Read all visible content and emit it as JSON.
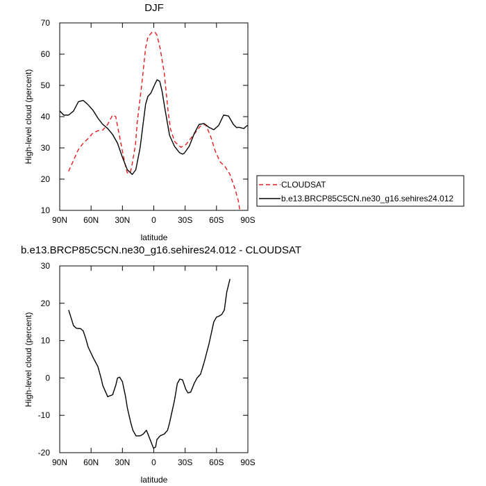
{
  "chart_data": [
    {
      "type": "line",
      "title": "DJF",
      "xlabel": "latitude",
      "ylabel": "High-level cloud (percent)",
      "xlim": [
        90,
        -90
      ],
      "ylim": [
        10,
        70
      ],
      "x_ticks": [
        90,
        60,
        30,
        0,
        -30,
        -60,
        -90
      ],
      "x_tick_labels": [
        "90N",
        "60N",
        "30N",
        "0",
        "30S",
        "60S",
        "90S"
      ],
      "y_ticks": [
        10,
        20,
        30,
        40,
        50,
        60,
        70
      ],
      "y_tick_labels": [
        "10",
        "20",
        "30",
        "40",
        "50",
        "60",
        "70"
      ],
      "legend_position": "right",
      "series": [
        {
          "name": "CLOUDSAT",
          "color": "#e41a1c",
          "dash": "dashed",
          "points": [
            [
              81.5,
              22.5
            ],
            [
              76.8,
              26
            ],
            [
              72.1,
              29.5
            ],
            [
              67.5,
              31.5
            ],
            [
              62.8,
              33
            ],
            [
              58.1,
              34.8
            ],
            [
              53.4,
              35.5
            ],
            [
              48.8,
              35.7
            ],
            [
              44.1,
              37.5
            ],
            [
              39.4,
              40.5
            ],
            [
              36.4,
              40
            ],
            [
              34.7,
              37
            ],
            [
              30,
              29
            ],
            [
              27,
              24
            ],
            [
              25.3,
              22
            ],
            [
              22.5,
              22
            ],
            [
              20.6,
              25
            ],
            [
              17.5,
              31
            ],
            [
              15.9,
              38
            ],
            [
              11.6,
              50
            ],
            [
              7.8,
              62
            ],
            [
              5.6,
              65.5
            ],
            [
              1.7,
              67
            ],
            [
              -1.2,
              67
            ],
            [
              -3.1,
              66
            ],
            [
              -6,
              62
            ],
            [
              -10,
              54
            ],
            [
              -13.6,
              42
            ],
            [
              -16,
              36
            ],
            [
              -20,
              32
            ],
            [
              -25.9,
              30.2
            ],
            [
              -30.6,
              31
            ],
            [
              -35.3,
              33
            ],
            [
              -40,
              35
            ],
            [
              -44.7,
              37
            ],
            [
              -49.4,
              37.5
            ],
            [
              -54.1,
              34
            ],
            [
              -58.8,
              29
            ],
            [
              -63.5,
              25.5
            ],
            [
              -68.2,
              24
            ],
            [
              -72.9,
              21.5
            ],
            [
              -77.6,
              17
            ],
            [
              -80.9,
              13
            ],
            [
              -82.3,
              10
            ]
          ]
        },
        {
          "name": "b.e13.BRCP85C5CN.ne30_g16.sehires24.012",
          "color": "#000000",
          "dash": "solid",
          "points": [
            [
              91,
              42.2
            ],
            [
              86.2,
              40.5
            ],
            [
              81.5,
              40.5
            ],
            [
              76.8,
              41.8
            ],
            [
              72.1,
              44.8
            ],
            [
              67.5,
              45.2
            ],
            [
              62.8,
              43.8
            ],
            [
              58.1,
              42
            ],
            [
              53.4,
              39.5
            ],
            [
              48.8,
              37.5
            ],
            [
              44.1,
              36.2
            ],
            [
              39.4,
              34.3
            ],
            [
              34.7,
              31.5
            ],
            [
              30,
              27
            ],
            [
              25.3,
              23
            ],
            [
              20.6,
              21.5
            ],
            [
              17.2,
              23
            ],
            [
              13.1,
              30
            ],
            [
              10.1,
              38
            ],
            [
              7.8,
              44
            ],
            [
              5.6,
              46.5
            ],
            [
              2.8,
              47.5
            ],
            [
              -0.5,
              50
            ],
            [
              -3.1,
              51.8
            ],
            [
              -5.7,
              51.3
            ],
            [
              -8,
              48
            ],
            [
              -10.4,
              43
            ],
            [
              -15.1,
              34
            ],
            [
              -19.8,
              30.5
            ],
            [
              -24.5,
              28.5
            ],
            [
              -27.5,
              28
            ],
            [
              -29.2,
              28.3
            ],
            [
              -33.9,
              30.5
            ],
            [
              -38.6,
              34.5
            ],
            [
              -43.3,
              37.5
            ],
            [
              -48,
              37.8
            ],
            [
              -52.7,
              36.6
            ],
            [
              -57.4,
              35.8
            ],
            [
              -62.1,
              37.2
            ],
            [
              -66.8,
              40.5
            ],
            [
              -71.5,
              40.2
            ],
            [
              -76.2,
              37.5
            ],
            [
              -79.2,
              36.5
            ],
            [
              -81.4,
              36.6
            ],
            [
              -86.2,
              36.2
            ],
            [
              -88,
              36.8
            ],
            [
              -91,
              37.5
            ]
          ]
        }
      ]
    },
    {
      "type": "line",
      "title": "b.e13.BRCP85C5CN.ne30_g16.sehires24.012 - CLOUDSAT",
      "xlabel": "latitude",
      "ylabel": "High-level cloud (percent)",
      "xlim": [
        90,
        -90
      ],
      "ylim": [
        -20,
        30
      ],
      "x_ticks": [
        90,
        60,
        30,
        0,
        -30,
        -60,
        -90
      ],
      "x_tick_labels": [
        "90N",
        "60N",
        "30N",
        "0",
        "30S",
        "60S",
        "90S"
      ],
      "y_ticks": [
        -20,
        -10,
        0,
        10,
        20,
        30
      ],
      "y_tick_labels": [
        "-20",
        "-10",
        "0",
        "10",
        "20",
        "30"
      ],
      "series": [
        {
          "color": "#000000",
          "dash": "solid",
          "points": [
            [
              81.5,
              18.2
            ],
            [
              79,
              16
            ],
            [
              76.8,
              14
            ],
            [
              74,
              13.3
            ],
            [
              70,
              13.2
            ],
            [
              67.5,
              12.6
            ],
            [
              65,
              10.5
            ],
            [
              62.8,
              8.3
            ],
            [
              58.1,
              5.5
            ],
            [
              53.4,
              3
            ],
            [
              50,
              -0.5
            ],
            [
              48.8,
              -2
            ],
            [
              44.1,
              -5
            ],
            [
              39.4,
              -4.5
            ],
            [
              36.4,
              -2
            ],
            [
              34.7,
              0
            ],
            [
              32.6,
              0.2
            ],
            [
              30,
              -1
            ],
            [
              27,
              -5
            ],
            [
              25.3,
              -8
            ],
            [
              22,
              -12
            ],
            [
              20,
              -14
            ],
            [
              17,
              -15.5
            ],
            [
              13,
              -15.5
            ],
            [
              10,
              -15
            ],
            [
              7,
              -14
            ],
            [
              2.8,
              -17
            ],
            [
              0.3,
              -18.8
            ],
            [
              -1.7,
              -18.5
            ],
            [
              -3,
              -16.5
            ],
            [
              -6,
              -15.5
            ],
            [
              -10,
              -15
            ],
            [
              -13.2,
              -14
            ],
            [
              -15.1,
              -12
            ],
            [
              -19.8,
              -6
            ],
            [
              -22.5,
              -1.5
            ],
            [
              -24.9,
              -0.3
            ],
            [
              -27.5,
              -0.5
            ],
            [
              -30.6,
              -3
            ],
            [
              -32.7,
              -4
            ],
            [
              -35.3,
              -3.8
            ],
            [
              -38.6,
              -1.5
            ],
            [
              -41.4,
              0
            ],
            [
              -44.7,
              1
            ],
            [
              -48,
              4
            ],
            [
              -52.7,
              9
            ],
            [
              -57.4,
              15
            ],
            [
              -60,
              16.3
            ],
            [
              -62.1,
              16.5
            ],
            [
              -65,
              17
            ],
            [
              -67.5,
              18.2
            ],
            [
              -69.8,
              23
            ],
            [
              -72.9,
              26.5
            ]
          ]
        }
      ]
    }
  ]
}
